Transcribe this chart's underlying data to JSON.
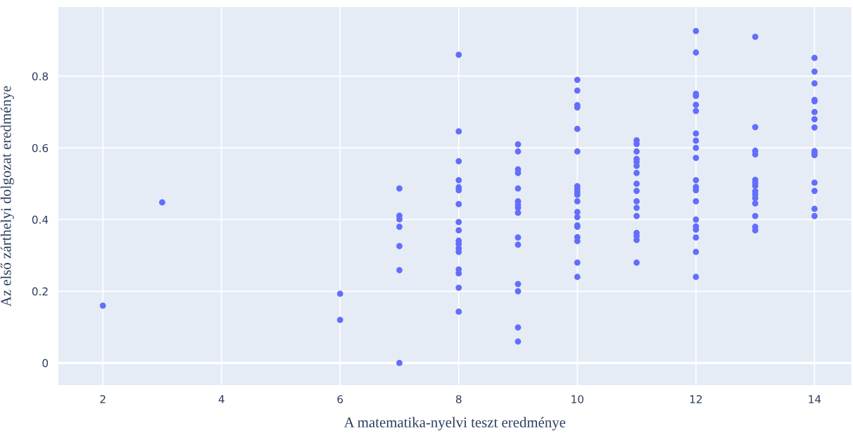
{
  "chart_data": {
    "type": "scatter",
    "xlabel": "A matematika-nyelvi teszt eredménye",
    "ylabel": "Az első zárthelyi dolgozat eredménye",
    "xlim": [
      1.25,
      14.62
    ],
    "ylim": [
      -0.062,
      0.993
    ],
    "xticks": [
      2,
      4,
      6,
      8,
      10,
      12,
      14
    ],
    "yticks": [
      0,
      0.2,
      0.4,
      0.6,
      0.8
    ],
    "grid": true,
    "marker": "circle",
    "legend": false,
    "series": [
      {
        "color": "#636efa",
        "x": [
          2,
          3,
          6,
          6,
          7,
          7,
          7,
          7,
          7,
          7,
          7,
          8,
          8,
          8,
          8,
          8,
          8,
          8,
          8,
          8,
          8,
          8,
          8,
          8,
          8,
          8,
          8,
          8,
          9,
          9,
          9,
          9,
          9,
          9,
          9,
          9,
          9,
          9,
          9,
          9,
          9,
          9,
          9,
          10,
          10,
          10,
          10,
          10,
          10,
          10,
          10,
          10,
          10,
          10,
          10,
          10,
          10,
          10,
          10,
          10,
          10,
          10,
          11,
          11,
          11,
          11,
          11,
          11,
          11,
          11,
          11,
          11,
          11,
          11,
          11,
          11,
          11,
          11,
          12,
          12,
          12,
          12,
          12,
          12,
          12,
          12,
          12,
          12,
          12,
          12,
          12,
          12,
          12,
          12,
          12,
          12,
          12,
          12,
          13,
          13,
          13,
          13,
          13,
          13,
          13,
          13,
          13,
          13,
          13,
          13,
          13,
          13,
          14,
          14,
          14,
          14,
          14,
          14,
          14,
          14,
          14,
          14,
          14,
          14,
          14,
          14,
          14
        ],
        "values": [
          0.16,
          0.448,
          0.193,
          0.12,
          0.487,
          0.411,
          0.401,
          0.38,
          0.326,
          0.259,
          0,
          0.86,
          0.646,
          0.563,
          0.51,
          0.49,
          0.482,
          0.443,
          0.393,
          0.37,
          0.341,
          0.332,
          0.32,
          0.31,
          0.261,
          0.25,
          0.21,
          0.143,
          0.61,
          0.59,
          0.54,
          0.53,
          0.487,
          0.451,
          0.441,
          0.433,
          0.419,
          0.35,
          0.33,
          0.22,
          0.2,
          0.099,
          0.06,
          0.79,
          0.76,
          0.719,
          0.713,
          0.653,
          0.59,
          0.493,
          0.485,
          0.477,
          0.469,
          0.451,
          0.421,
          0.407,
          0.384,
          0.38,
          0.351,
          0.34,
          0.28,
          0.24,
          0.621,
          0.611,
          0.59,
          0.569,
          0.561,
          0.55,
          0.53,
          0.5,
          0.48,
          0.451,
          0.433,
          0.41,
          0.363,
          0.354,
          0.343,
          0.28,
          0.926,
          0.866,
          0.751,
          0.745,
          0.72,
          0.703,
          0.64,
          0.62,
          0.6,
          0.572,
          0.51,
          0.491,
          0.482,
          0.451,
          0.4,
          0.381,
          0.372,
          0.35,
          0.31,
          0.24,
          0.91,
          0.658,
          0.592,
          0.582,
          0.511,
          0.503,
          0.494,
          0.479,
          0.47,
          0.46,
          0.445,
          0.41,
          0.38,
          0.37,
          0.851,
          0.813,
          0.78,
          0.734,
          0.73,
          0.7,
          0.68,
          0.657,
          0.591,
          0.585,
          0.58,
          0.503,
          0.48,
          0.43,
          0.41
        ]
      }
    ]
  }
}
